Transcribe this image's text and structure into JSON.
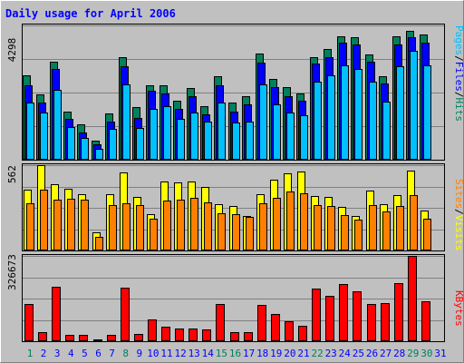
{
  "chart_data": [
    {
      "type": "bar",
      "title": "Daily usage for April 2006",
      "panel": "hits-files-pages",
      "ylabel_parts": [
        "Pages",
        "Files",
        "Hits"
      ],
      "ymax_label": "4298",
      "categories": [
        "1",
        "2",
        "3",
        "4",
        "5",
        "6",
        "7",
        "8",
        "9",
        "10",
        "11",
        "12",
        "13",
        "14",
        "15",
        "16",
        "17",
        "18",
        "19",
        "20",
        "21",
        "22",
        "23",
        "24",
        "25",
        "26",
        "27",
        "28",
        "29",
        "30",
        "31"
      ],
      "weekend_days": [
        "1",
        "8",
        "15",
        "16",
        "22",
        "29",
        "30"
      ],
      "series": [
        {
          "name": "Hits",
          "values": [
            2700,
            2090,
            3150,
            1540,
            1140,
            620,
            1470,
            3290,
            1680,
            2380,
            2380,
            1900,
            2280,
            1700,
            2680,
            1840,
            2040,
            3400,
            2580,
            2330,
            2110,
            3290,
            3530,
            3950,
            3930,
            3380,
            2680,
            3950,
            4120,
            4020,
            0
          ]
        },
        {
          "name": "Files",
          "values": [
            2390,
            1840,
            2890,
            1300,
            880,
            500,
            1230,
            2980,
            1350,
            2200,
            2120,
            1640,
            2030,
            1460,
            2390,
            1550,
            1780,
            3110,
            2310,
            2040,
            1880,
            3080,
            3290,
            3760,
            3690,
            3150,
            2450,
            3700,
            3930,
            3760,
            0
          ]
        },
        {
          "name": "Pages",
          "values": [
            1830,
            1500,
            2250,
            1050,
            700,
            350,
            980,
            2400,
            1030,
            1630,
            1700,
            1300,
            1500,
            1230,
            1830,
            1200,
            1230,
            2420,
            1780,
            1500,
            1420,
            2490,
            2700,
            3020,
            2890,
            2500,
            1850,
            3000,
            3480,
            3010,
            0
          ]
        }
      ]
    },
    {
      "type": "bar",
      "panel": "visits-sites",
      "ylabel_parts": [
        "Sites",
        "Visits"
      ],
      "ymax_label": "562",
      "categories": [
        "1",
        "2",
        "3",
        "4",
        "5",
        "6",
        "7",
        "8",
        "9",
        "10",
        "11",
        "12",
        "13",
        "14",
        "15",
        "16",
        "17",
        "18",
        "19",
        "20",
        "21",
        "22",
        "23",
        "24",
        "25",
        "26",
        "27",
        "28",
        "29",
        "30",
        "31"
      ],
      "series": [
        {
          "name": "Visits",
          "values": [
            400,
            562,
            438,
            406,
            370,
            120,
            368,
            512,
            355,
            241,
            452,
            451,
            454,
            417,
            306,
            292,
            225,
            372,
            468,
            506,
            519,
            358,
            353,
            287,
            228,
            393,
            307,
            365,
            527,
            263,
            0
          ]
        },
        {
          "name": "Sites",
          "values": [
            309,
            401,
            335,
            340,
            336,
            88,
            300,
            311,
            300,
            210,
            326,
            334,
            344,
            318,
            244,
            242,
            222,
            308,
            349,
            390,
            375,
            296,
            290,
            234,
            205,
            300,
            258,
            290,
            367,
            209,
            0
          ]
        }
      ]
    },
    {
      "type": "bar",
      "panel": "kbytes",
      "ylabel_parts": [
        "KBytes"
      ],
      "ymax_label": "326673",
      "categories": [
        "1",
        "2",
        "3",
        "4",
        "5",
        "6",
        "7",
        "8",
        "9",
        "10",
        "11",
        "12",
        "13",
        "14",
        "15",
        "16",
        "17",
        "18",
        "19",
        "20",
        "21",
        "22",
        "23",
        "24",
        "25",
        "26",
        "27",
        "28",
        "29",
        "30",
        "31"
      ],
      "series": [
        {
          "name": "KBytes",
          "values": [
            143000,
            36000,
            207000,
            25000,
            26000,
            7000,
            23000,
            205000,
            27000,
            84000,
            55000,
            50000,
            50000,
            44000,
            143000,
            36000,
            34000,
            140000,
            105000,
            77000,
            60000,
            203000,
            175000,
            219000,
            190000,
            141000,
            147000,
            222000,
            326673,
            152000,
            0
          ]
        }
      ]
    }
  ],
  "colors": {
    "background": "#C0C0C0",
    "title": "#0000FF",
    "hits": "#00805C",
    "files": "#0000FF",
    "pages": "#00C0FF",
    "visits": "#FFFF00",
    "sites": "#FF8000",
    "kbytes": "#FF0000",
    "weekend_label": "#00805C",
    "weekday_label": "#0000FF"
  }
}
